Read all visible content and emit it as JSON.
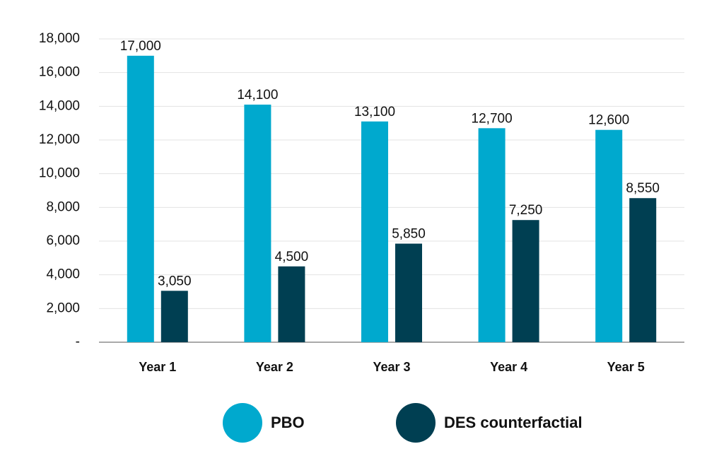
{
  "chart_data": {
    "type": "bar",
    "categories": [
      "Year 1",
      "Year 2",
      "Year 3",
      "Year 4",
      "Year 5"
    ],
    "series": [
      {
        "name": "PBO",
        "color": "#00a9ce",
        "values": [
          17000,
          14100,
          13100,
          12700,
          12600
        ],
        "value_labels": [
          "17,000",
          "14,100",
          "13,100",
          "12,700",
          "12,600"
        ]
      },
      {
        "name": "DES counterfactial",
        "color": "#003f52",
        "values": [
          3050,
          4500,
          5850,
          7250,
          8550
        ],
        "value_labels": [
          "3,050",
          "4,500",
          "5,850",
          "7,250",
          "8,550"
        ]
      }
    ],
    "ylim": [
      0,
      18000
    ],
    "yticks": [
      {
        "value": 0,
        "label": "-"
      },
      {
        "value": 2000,
        "label": "2,000"
      },
      {
        "value": 4000,
        "label": "4,000"
      },
      {
        "value": 6000,
        "label": "6,000"
      },
      {
        "value": 8000,
        "label": "8,000"
      },
      {
        "value": 10000,
        "label": "10,000"
      },
      {
        "value": 12000,
        "label": "12,000"
      },
      {
        "value": 14000,
        "label": "14,000"
      },
      {
        "value": 16000,
        "label": "16,000"
      },
      {
        "value": 18000,
        "label": "18,000"
      }
    ],
    "grid": true,
    "legend": "bottom"
  }
}
